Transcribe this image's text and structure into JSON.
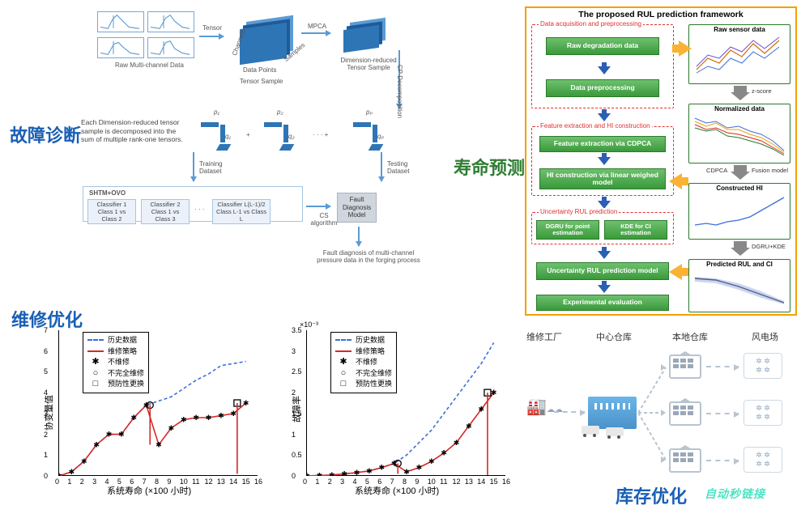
{
  "titles": {
    "fault_diagnosis": "故障诊断",
    "life_prediction": "寿命预测",
    "maintenance_opt": "维修优化",
    "inventory_opt": "库存优化"
  },
  "colors": {
    "title_blue": "#1a5fb4",
    "title_green": "#2e7d32",
    "flow_blue": "#2e75b6",
    "arrow_blue": "#5b9bd5",
    "dashed_red": "#e03030",
    "rul_border": "#f4a000",
    "green_block": "#3a9a3a",
    "orange_arrow": "#f9b233",
    "hist_dash": "#3a6fd8",
    "strategy_red": "#d62828",
    "inv_gray": "#b8c4d0"
  },
  "fault_diagram": {
    "raw_label": "Raw Multi-channel Data",
    "tensor_label": "Tensor",
    "channels": "Channels",
    "data_points": "Data Points",
    "samples": "Samples",
    "mpca": "MPCA",
    "reduced": "Dimension-reduced\nTensor Sample",
    "cp": "CP Decomposition",
    "decomp_text": "Each Dimension-reduced tensor sample is decomposed into the sum of multiple rank-one tensors.",
    "q_symbols": [
      "q₁",
      "q₂",
      "qₚ"
    ],
    "p_symbols": [
      "p₁",
      "p₂",
      "pₚ"
    ],
    "plus": "+",
    "dots": "· · · +",
    "training": "Training\nDataset",
    "testing": "Testing\nDataset",
    "shtm": "SHTM+OVO",
    "classifiers": [
      {
        "t": "Classifier 1",
        "b": "Class 1 vs Class 2"
      },
      {
        "t": "Classifier 2",
        "b": "Class 1 vs Class 3"
      },
      {
        "t": "Classifier L(L-1)/2",
        "b": "Class L-1 vs Class L"
      }
    ],
    "class_dots": "· · ·",
    "cs_algo": "CS\nalgorithm",
    "fault_model": "Fault\nDiagnosis\nModel",
    "final": "Fault diagnosis of multi-channel\npressure data in the forging process"
  },
  "rul": {
    "title": "The proposed RUL prediction framework",
    "groups": {
      "acq": "Data acquisition and preprocessing",
      "feat": "Feature extraction and HI construction",
      "unc": "Uncertainty RUL prediction"
    },
    "blocks": {
      "raw": "Raw degradation data",
      "prep": "Data preprocessing",
      "feat": "Feature extraction via CDPCA",
      "hi": "HI construction via linear weighed model",
      "dgru": "DGRU for point estimation",
      "kde": "KDE for CI estimation",
      "unc_model": "Uncertainty RUL prediction model",
      "expt": "Experimental evaluation"
    },
    "panels": {
      "raw": "Raw sensor data",
      "norm": "Normalized data",
      "hi": "Constructed HI",
      "pred": "Predicted RUL and CI"
    },
    "arrows": {
      "zscore": "z-score",
      "cdpca": "CDPCA",
      "fusion": "Fusion model",
      "dgru_kde": "DGRU+KDE"
    }
  },
  "maintenance": {
    "legend": {
      "hist": "历史数据",
      "strat": "维修策略",
      "none": "不维修",
      "imperfect": "不完全维修",
      "replace": "预防性更换"
    },
    "xlabel": "系统寿命  (×100 小时)",
    "ylabel_left": "协变量值",
    "ylabel_right": "故障率",
    "x_ticks": [
      0,
      1,
      2,
      3,
      4,
      5,
      6,
      7,
      8,
      9,
      10,
      11,
      12,
      13,
      14,
      15,
      16
    ],
    "left": {
      "ylim": [
        0,
        7
      ],
      "yticks": [
        0,
        1,
        2,
        3,
        4,
        5,
        6,
        7
      ],
      "hist_y": [
        0.0,
        0.2,
        0.7,
        1.5,
        2.0,
        2.0,
        2.8,
        3.4,
        3.6,
        3.8,
        4.2,
        4.6,
        4.9,
        5.3,
        5.4,
        5.5
      ],
      "strat_y": [
        0.0,
        0.2,
        0.7,
        1.5,
        2.0,
        2.0,
        2.8,
        3.4,
        1.5,
        2.3,
        2.7,
        2.8,
        2.8,
        2.9,
        3.0,
        3.5
      ],
      "drops": [
        {
          "x": 7.3,
          "from": 3.4,
          "to": 1.5
        },
        {
          "x": 14.3,
          "from": 3.5,
          "to": 0.1
        }
      ],
      "marks": {
        "circles": [
          [
            7.3,
            3.4
          ]
        ],
        "squares": [
          [
            14.3,
            3.5
          ]
        ]
      }
    },
    "right": {
      "ylim": [
        0,
        0.0035
      ],
      "exp": "×10⁻³",
      "yticks": [
        0,
        0.5,
        1,
        1.5,
        2,
        2.5,
        3,
        3.5
      ],
      "hist_y": [
        0,
        0.01,
        0.02,
        0.05,
        0.08,
        0.12,
        0.2,
        0.3,
        0.5,
        0.8,
        1.1,
        1.5,
        1.9,
        2.3,
        2.7,
        3.2
      ],
      "strat_y": [
        0,
        0.01,
        0.02,
        0.05,
        0.08,
        0.12,
        0.2,
        0.3,
        0.1,
        0.2,
        0.35,
        0.55,
        0.8,
        1.2,
        1.6,
        2.0
      ],
      "drops": [
        {
          "x": 7.3,
          "from": 0.3,
          "to": 0.05
        },
        {
          "x": 14.5,
          "from": 2.0,
          "to": 0.02
        }
      ],
      "marks": {
        "circles": [
          [
            7.3,
            0.3
          ]
        ],
        "squares": [
          [
            14.5,
            2.0
          ]
        ]
      }
    }
  },
  "inventory": {
    "labels": {
      "factory": "维修工厂",
      "central": "中心仓库",
      "local": "本地仓库",
      "windfarm": "风电场"
    },
    "watermark": "自动秒链接",
    "local_count": 3,
    "farm_count": 3,
    "turbines_per_farm": 4
  }
}
